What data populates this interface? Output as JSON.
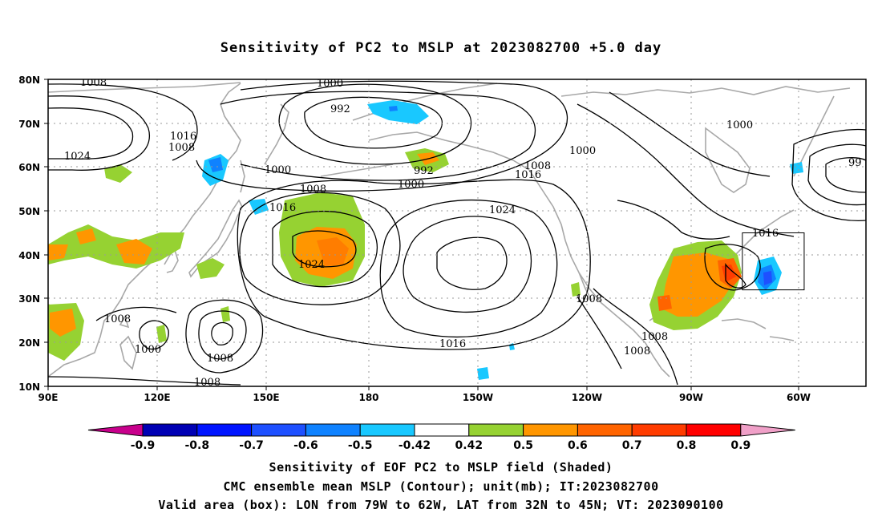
{
  "title": "Sensitivity of PC2 to MSLP at 2023082700 +5.0 day",
  "lat_labels": [
    "80N",
    "70N",
    "60N",
    "50N",
    "40N",
    "30N",
    "20N",
    "10N"
  ],
  "lon_labels": [
    "90E",
    "120E",
    "150E",
    "180",
    "150W",
    "120W",
    "90W",
    "60W"
  ],
  "contour_labels": [
    "1008",
    "1000",
    "992",
    "1016",
    "1008",
    "1024",
    "1000",
    "992",
    "1000",
    "1008",
    "1016",
    "1000",
    "1008",
    "1016",
    "1024",
    "1024",
    "1016",
    "1008",
    "1008",
    "1000",
    "1008",
    "1000",
    "1008",
    "1008",
    "1016",
    "1008",
    "99"
  ],
  "colorbar": {
    "labels": [
      "-0.9",
      "-0.8",
      "-0.7",
      "-0.6",
      "-0.5",
      "-0.42",
      "0.42",
      "0.5",
      "0.6",
      "0.7",
      "0.8",
      "0.9"
    ],
    "colors": [
      "#0000b4",
      "#0014ff",
      "#1e50ff",
      "#0f82ff",
      "#19c8ff",
      "#ffffff",
      "#96d232",
      "#ff9600",
      "#ff6400",
      "#ff3c00",
      "#ff0000"
    ],
    "low_color": "#c8008c",
    "high_color": "#f0a0c8"
  },
  "footer": {
    "line1": "Sensitivity of EOF PC2 to MSLP field (Shaded)",
    "line2": "CMC ensemble mean MSLP (Contour); unit(mb); IT:2023082700",
    "line3": "Valid area (box): LON from 79W to 62W, LAT from 32N to 45N; VT: 2023090100"
  },
  "valid_box": {
    "lon_min": -79,
    "lon_max": -62,
    "lat_min": 32,
    "lat_max": 45
  }
}
